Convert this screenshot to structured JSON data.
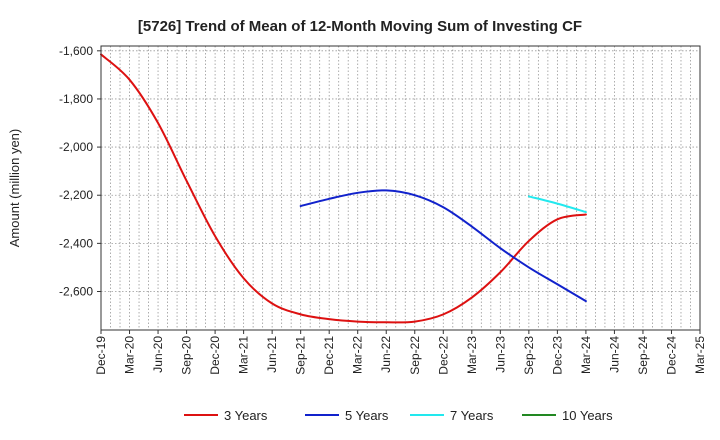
{
  "chart_data": {
    "type": "line",
    "title": "[5726]  Trend of Mean of 12-Month Moving Sum of Investing CF",
    "ylabel": "Amount (million yen)",
    "xlabel": "",
    "ylim": [
      -2760,
      -1580
    ],
    "yticks": [
      -1600,
      -1800,
      -2000,
      -2200,
      -2400,
      -2600
    ],
    "ytick_labels": [
      "-1,600",
      "-1,800",
      "-2,000",
      "-2,200",
      "-2,400",
      "-2,600"
    ],
    "x_start": "Dec-19",
    "x_end": "Mar-25",
    "xtick_labels": [
      "Dec-19",
      "Mar-20",
      "Jun-20",
      "Sep-20",
      "Dec-20",
      "Mar-21",
      "Jun-21",
      "Sep-21",
      "Dec-21",
      "Mar-22",
      "Jun-22",
      "Sep-22",
      "Dec-22",
      "Mar-23",
      "Jun-23",
      "Sep-23",
      "Dec-23",
      "Mar-24",
      "Jun-24",
      "Sep-24",
      "Dec-24",
      "Mar-25"
    ],
    "grid": true,
    "legend_position": "bottom",
    "series": [
      {
        "name": "3 Years",
        "color": "#dd1111",
        "points": [
          [
            "Dec-19",
            -1615
          ],
          [
            "Mar-20",
            -1720
          ],
          [
            "Jun-20",
            -1900
          ],
          [
            "Sep-20",
            -2140
          ],
          [
            "Dec-20",
            -2370
          ],
          [
            "Mar-21",
            -2545
          ],
          [
            "Jun-21",
            -2650
          ],
          [
            "Sep-21",
            -2695
          ],
          [
            "Dec-21",
            -2715
          ],
          [
            "Mar-22",
            -2725
          ],
          [
            "Jun-22",
            -2728
          ],
          [
            "Sep-22",
            -2725
          ],
          [
            "Dec-22",
            -2695
          ],
          [
            "Mar-23",
            -2625
          ],
          [
            "Jun-23",
            -2520
          ],
          [
            "Sep-23",
            -2390
          ],
          [
            "Dec-23",
            -2300
          ],
          [
            "Mar-24",
            -2280
          ]
        ]
      },
      {
        "name": "5 Years",
        "color": "#1122cc",
        "points": [
          [
            "Sep-21",
            -2245
          ],
          [
            "Dec-21",
            -2215
          ],
          [
            "Mar-22",
            -2190
          ],
          [
            "Jun-22",
            -2180
          ],
          [
            "Sep-22",
            -2200
          ],
          [
            "Dec-22",
            -2250
          ],
          [
            "Mar-23",
            -2330
          ],
          [
            "Jun-23",
            -2420
          ],
          [
            "Sep-23",
            -2500
          ],
          [
            "Dec-23",
            -2570
          ],
          [
            "Mar-24",
            -2640
          ]
        ]
      },
      {
        "name": "7 Years",
        "color": "#22e8ee",
        "points": [
          [
            "Sep-23",
            -2205
          ],
          [
            "Dec-23",
            -2235
          ],
          [
            "Mar-24",
            -2270
          ]
        ]
      },
      {
        "name": "10 Years",
        "color": "#228822",
        "points": []
      }
    ]
  }
}
